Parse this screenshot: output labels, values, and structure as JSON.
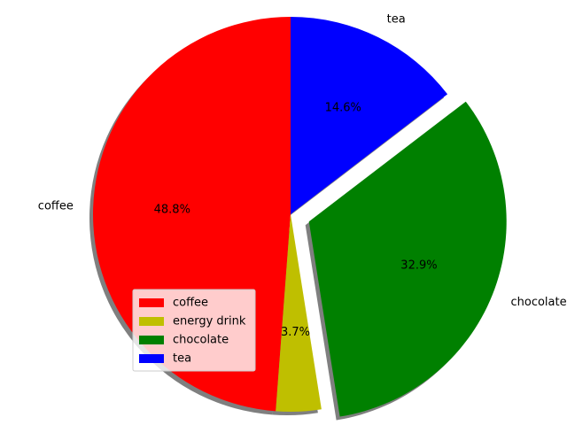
{
  "chart_data": {
    "type": "pie",
    "categories": [
      "coffee",
      "energy drink",
      "chocolate",
      "tea"
    ],
    "values": [
      48.8,
      3.7,
      32.9,
      14.6
    ],
    "percent_labels": [
      "48.8%",
      "3.7%",
      "32.9%",
      "14.6%"
    ],
    "colors": [
      "#ff0000",
      "#bfbf00",
      "#008000",
      "#0000ff"
    ],
    "exploded": [
      false,
      false,
      true,
      false
    ],
    "start_angle_deg": 90,
    "direction": "counterclockwise",
    "shadow": true,
    "legend": {
      "placement": "lower-left",
      "entries": [
        "coffee",
        "energy drink",
        "chocolate",
        "tea"
      ]
    },
    "title": "",
    "xlabel": "",
    "ylabel": ""
  }
}
